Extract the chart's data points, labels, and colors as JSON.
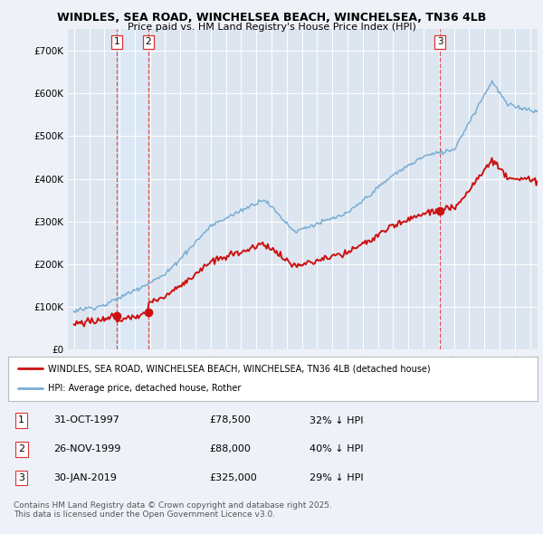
{
  "title_line1": "WINDLES, SEA ROAD, WINCHELSEA BEACH, WINCHELSEA, TN36 4LB",
  "title_line2": "Price paid vs. HM Land Registry's House Price Index (HPI)",
  "background_color": "#eef2f8",
  "plot_bg_color": "#dde6f0",
  "grid_color": "#ffffff",
  "hpi_color": "#7aadd4",
  "price_color": "#cc1111",
  "vline_color": "#dd3333",
  "shade_color": "#dce8f5",
  "purchases": [
    {
      "date_num": 1997.83,
      "price": 78500,
      "label": "1"
    },
    {
      "date_num": 1999.9,
      "price": 88000,
      "label": "2"
    },
    {
      "date_num": 2019.08,
      "price": 325000,
      "label": "3"
    }
  ],
  "legend_entries": [
    "WINDLES, SEA ROAD, WINCHELSEA BEACH, WINCHELSEA, TN36 4LB (detached house)",
    "HPI: Average price, detached house, Rother"
  ],
  "table_data": [
    {
      "num": "1",
      "date": "31-OCT-1997",
      "price": "£78,500",
      "note": "32% ↓ HPI"
    },
    {
      "num": "2",
      "date": "26-NOV-1999",
      "price": "£88,000",
      "note": "40% ↓ HPI"
    },
    {
      "num": "3",
      "date": "30-JAN-2019",
      "price": "£325,000",
      "note": "29% ↓ HPI"
    }
  ],
  "footnote": "Contains HM Land Registry data © Crown copyright and database right 2025.\nThis data is licensed under the Open Government Licence v3.0.",
  "ylim": [
    0,
    750000
  ],
  "yticks": [
    0,
    100000,
    200000,
    300000,
    400000,
    500000,
    600000,
    700000
  ],
  "ytick_labels": [
    "£0",
    "£100K",
    "£200K",
    "£300K",
    "£400K",
    "£500K",
    "£600K",
    "£700K"
  ],
  "xlim_start": 1994.6,
  "xlim_end": 2025.5
}
